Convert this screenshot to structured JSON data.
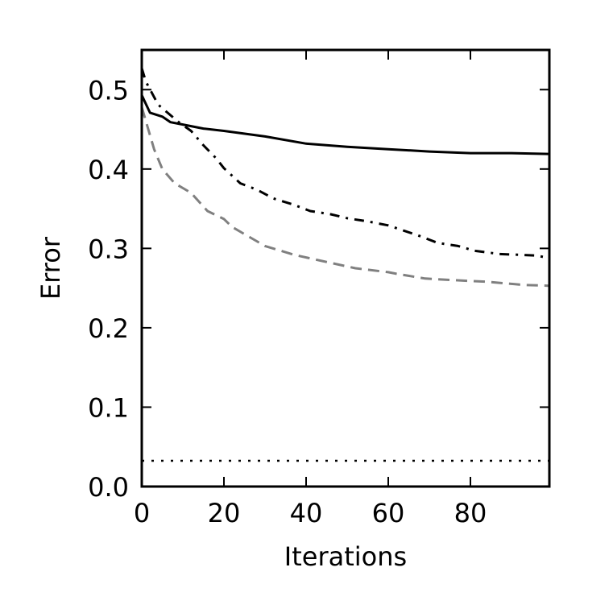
{
  "chart_data": {
    "type": "line",
    "title": "",
    "xlabel": "Iterations",
    "ylabel": "Error",
    "xlim": [
      0,
      99
    ],
    "ylim": [
      0.0,
      0.55
    ],
    "xticks": [
      0,
      20,
      40,
      60,
      80
    ],
    "xtick_labels": [
      "0",
      "20",
      "40",
      "60",
      "80"
    ],
    "yticks": [
      0.0,
      0.1,
      0.2,
      0.3,
      0.4,
      0.5
    ],
    "ytick_labels": [
      "0.0",
      "0.1",
      "0.2",
      "0.3",
      "0.4",
      "0.5"
    ],
    "grid": false,
    "legend": null,
    "series": [
      {
        "name": "solid",
        "style": "solid",
        "color": "#000000",
        "x": [
          0,
          2,
          5,
          7,
          10,
          15,
          20,
          30,
          40,
          50,
          60,
          70,
          80,
          90,
          99
        ],
        "values": [
          0.493,
          0.471,
          0.466,
          0.459,
          0.456,
          0.451,
          0.448,
          0.441,
          0.432,
          0.428,
          0.425,
          0.422,
          0.42,
          0.42,
          0.419
        ]
      },
      {
        "name": "dash-dot",
        "style": "dashdot",
        "color": "#000000",
        "x": [
          0,
          1,
          4,
          9,
          12,
          15,
          18,
          20,
          24,
          28,
          32,
          37,
          41,
          46,
          50,
          55,
          60,
          64,
          68,
          72,
          77,
          81,
          87,
          96,
          99
        ],
        "values": [
          0.527,
          0.51,
          0.481,
          0.459,
          0.448,
          0.43,
          0.414,
          0.401,
          0.382,
          0.374,
          0.363,
          0.355,
          0.347,
          0.343,
          0.338,
          0.334,
          0.329,
          0.322,
          0.315,
          0.307,
          0.303,
          0.297,
          0.293,
          0.291,
          0.288
        ]
      },
      {
        "name": "dashed-gray",
        "style": "dashed",
        "color": "#808080",
        "x": [
          0,
          3,
          5,
          8,
          12,
          16,
          20,
          22,
          30,
          37,
          44,
          52,
          60,
          62,
          69,
          76,
          84,
          93,
          99
        ],
        "values": [
          0.478,
          0.425,
          0.4,
          0.382,
          0.37,
          0.347,
          0.337,
          0.327,
          0.303,
          0.292,
          0.284,
          0.275,
          0.27,
          0.268,
          0.262,
          0.26,
          0.258,
          0.254,
          0.253
        ]
      },
      {
        "name": "dotted-baseline",
        "style": "dotted",
        "color": "#000000",
        "x": [
          0,
          99
        ],
        "values": [
          0.0325,
          0.0325
        ]
      }
    ]
  }
}
